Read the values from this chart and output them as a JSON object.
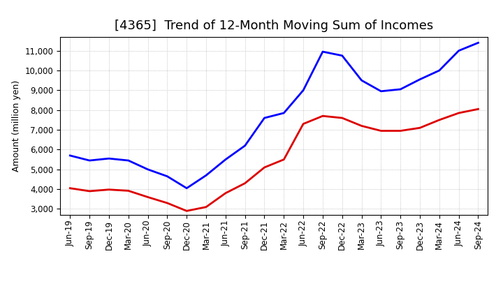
{
  "title": "[4365]  Trend of 12-Month Moving Sum of Incomes",
  "ylabel": "Amount (million yen)",
  "background_color": "#ffffff",
  "grid_color": "#aaaaaa",
  "ordinary_income_color": "#0000ff",
  "net_income_color": "#dd0000",
  "x_labels": [
    "Jun-19",
    "Sep-19",
    "Dec-19",
    "Mar-20",
    "Jun-20",
    "Sep-20",
    "Dec-20",
    "Mar-21",
    "Jun-21",
    "Sep-21",
    "Dec-21",
    "Mar-22",
    "Jun-22",
    "Sep-22",
    "Dec-22",
    "Mar-23",
    "Jun-23",
    "Sep-23",
    "Dec-23",
    "Mar-24",
    "Jun-24",
    "Sep-24"
  ],
  "ordinary_income": [
    5700,
    5450,
    5550,
    5450,
    5000,
    4650,
    4050,
    4700,
    5500,
    6200,
    7600,
    7850,
    9000,
    10950,
    10750,
    9500,
    8950,
    9050,
    9550,
    10000,
    11000,
    11400
  ],
  "net_income": [
    4050,
    3900,
    3980,
    3920,
    3600,
    3300,
    2900,
    3100,
    3800,
    4300,
    5100,
    5500,
    7300,
    7700,
    7600,
    7200,
    6950,
    6950,
    7100,
    7500,
    7850,
    8050
  ],
  "ylim": [
    2700,
    11700
  ],
  "yticks": [
    3000,
    4000,
    5000,
    6000,
    7000,
    8000,
    9000,
    10000,
    11000
  ],
  "title_fontsize": 13,
  "axis_label_fontsize": 9,
  "tick_fontsize": 8.5,
  "legend_fontsize": 9,
  "line_width": 2.0
}
